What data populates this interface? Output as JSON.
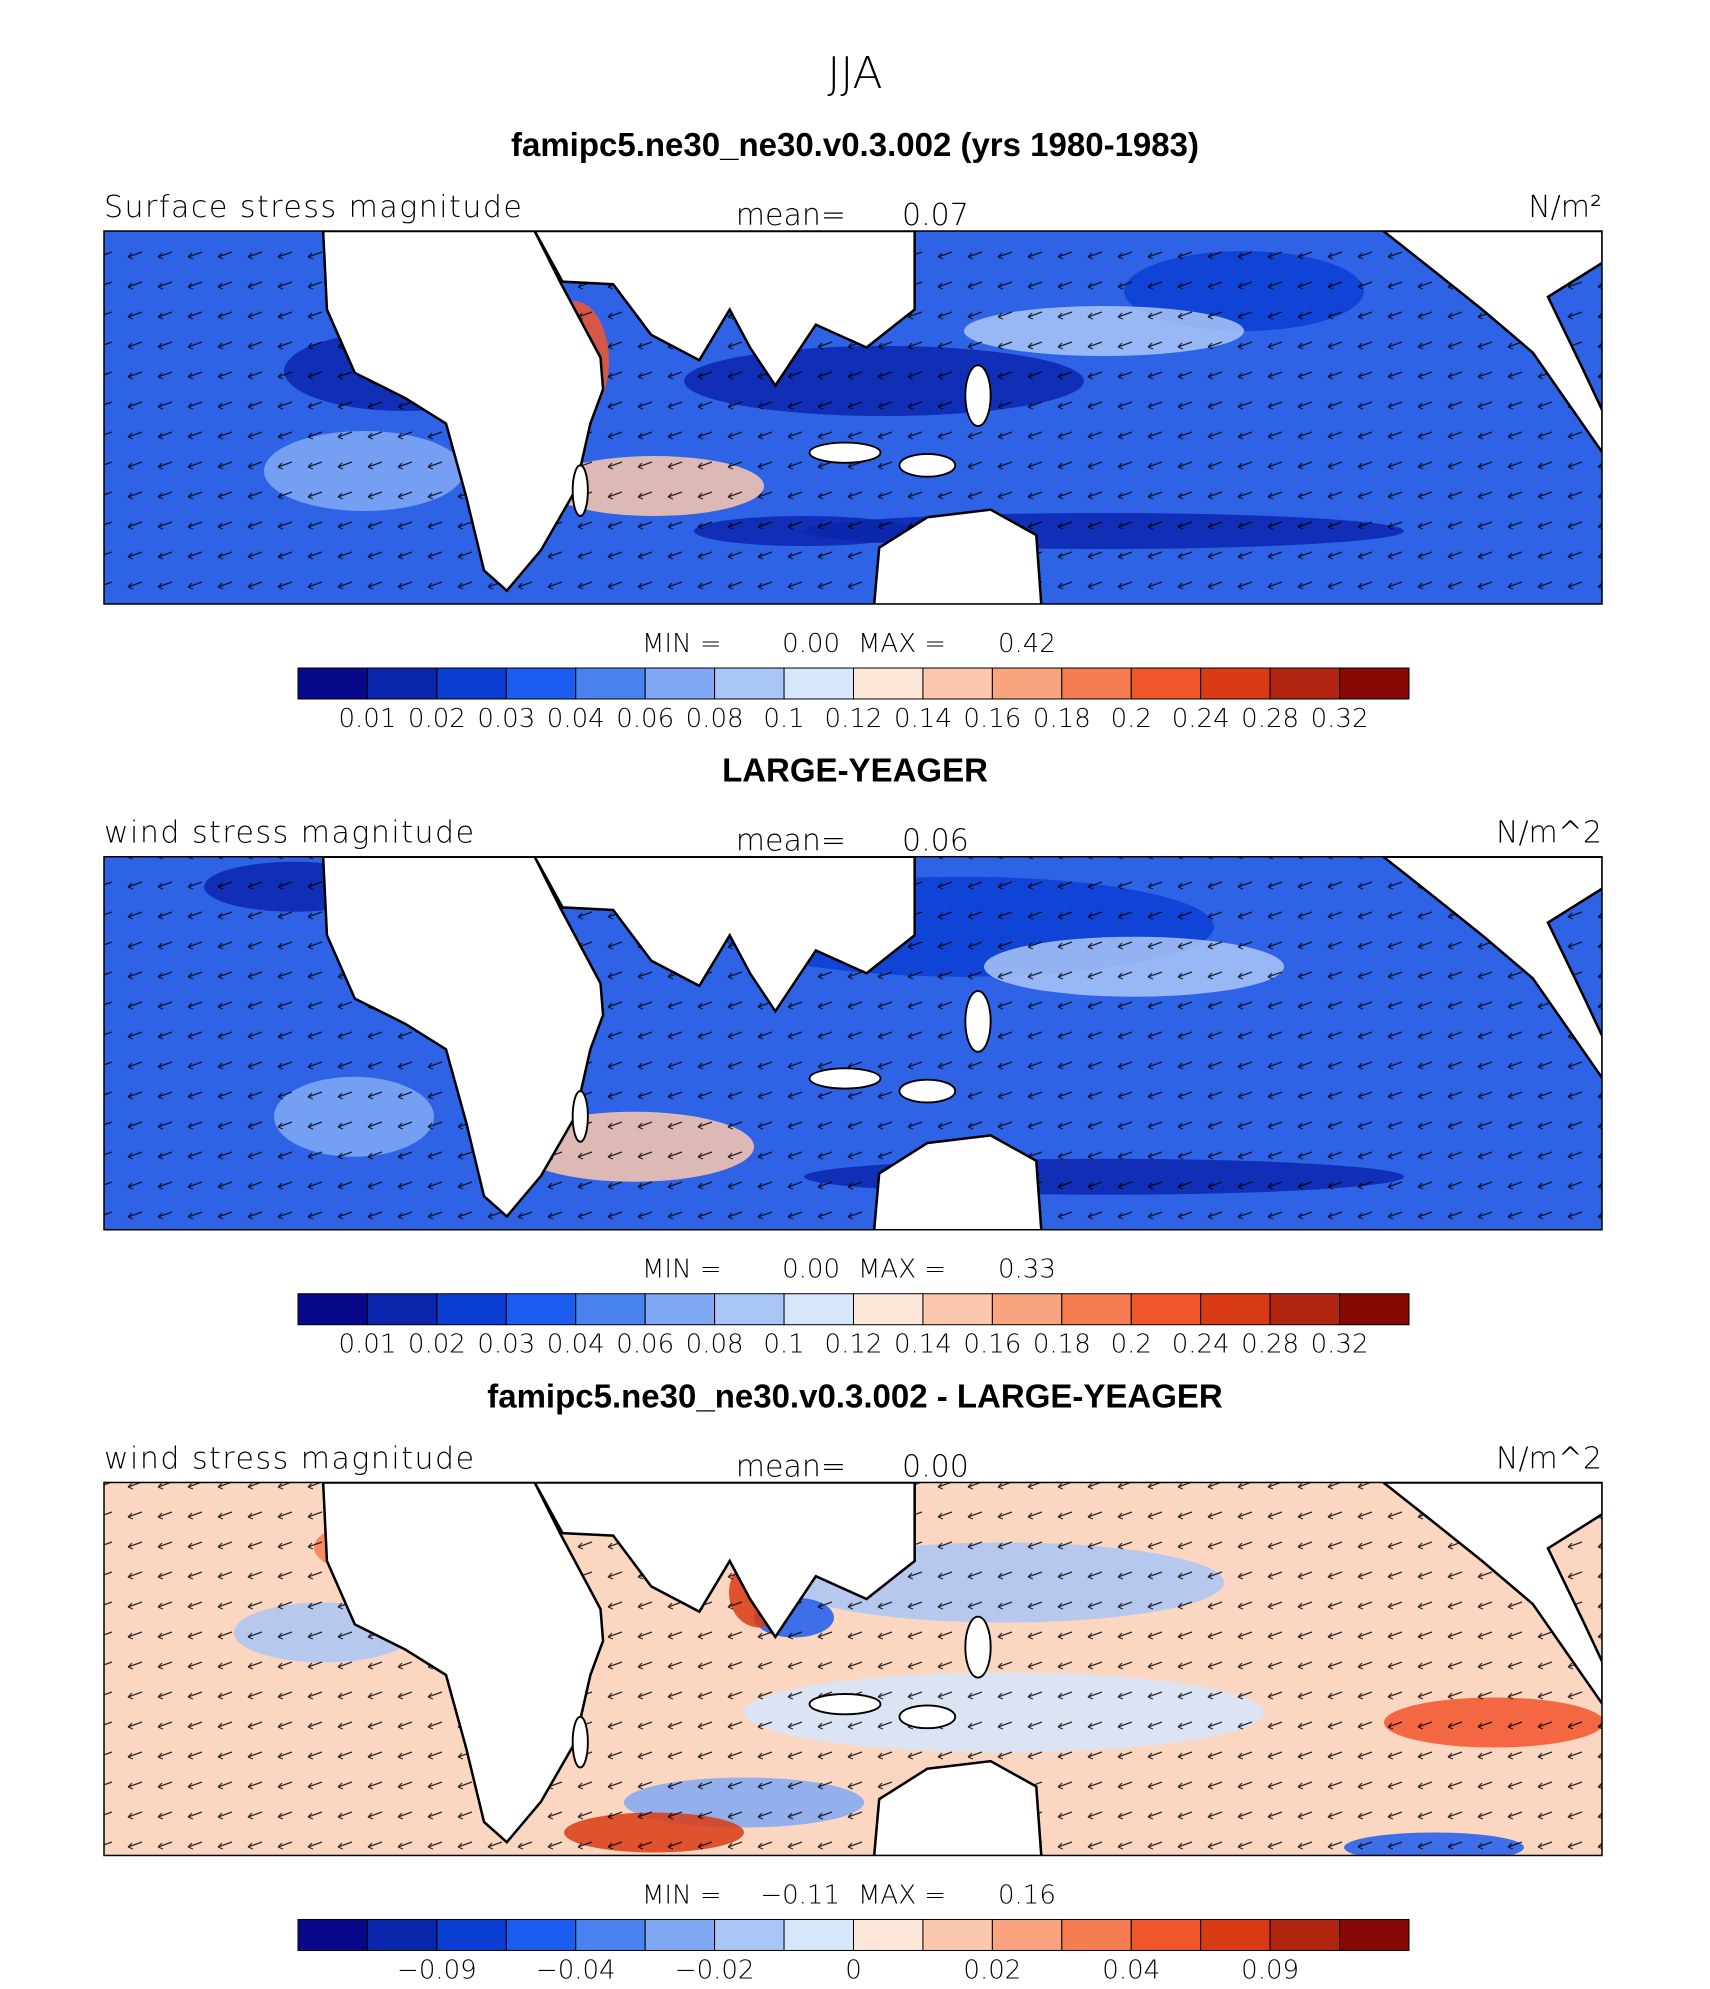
{
  "title": "JJA",
  "colorbar_colors": [
    "#07088a",
    "#0a26ad",
    "#0a3ed3",
    "#1d5cf0",
    "#4a82ef",
    "#80a9f4",
    "#aac6f7",
    "#d6e6fb",
    "#fde7d8",
    "#fbc8ad",
    "#f9a47e",
    "#f67d52",
    "#f1552c",
    "#d93b14",
    "#b22611",
    "#870905"
  ],
  "panels": [
    {
      "title": "famipc5.ne30_ne30.v0.3.002 (yrs 1980-1983)",
      "left_label": "Surface stress magnitude",
      "mean_label": "mean=",
      "mean": "0.07",
      "units": "N/m²",
      "min_label": "MIN =",
      "min": "0.00",
      "max_label": "MAX =",
      "max": "0.42",
      "colorbar_labels": [
        "0.01",
        "0.02",
        "0.03",
        "0.04",
        "0.06",
        "0.08",
        "0.1",
        "0.12",
        "0.14",
        "0.16",
        "0.18",
        "0.2",
        "0.24",
        "0.28",
        "0.32"
      ]
    },
    {
      "title": "LARGE-YEAGER",
      "left_label": "wind stress magnitude",
      "mean_label": "mean=",
      "mean": "0.06",
      "units": "N/m^2",
      "min_label": "MIN =",
      "min": "0.00",
      "max_label": "MAX =",
      "max": "0.33",
      "colorbar_labels": [
        "0.01",
        "0.02",
        "0.03",
        "0.04",
        "0.06",
        "0.08",
        "0.1",
        "0.12",
        "0.14",
        "0.16",
        "0.18",
        "0.2",
        "0.24",
        "0.28",
        "0.32"
      ]
    },
    {
      "title": "famipc5.ne30_ne30.v0.3.002 - LARGE-YEAGER",
      "left_label": "wind stress magnitude",
      "mean_label": "mean=",
      "mean": "0.00",
      "units": "N/m^2",
      "min_label": "MIN =",
      "min": "−0.11",
      "max_label": "MAX =",
      "max": "0.16",
      "colorbar_labels": [
        null,
        "−0.09",
        null,
        "−0.04",
        null,
        "−0.02",
        null,
        "0",
        null,
        "0.02",
        null,
        "0.04",
        null,
        "0.09",
        null
      ]
    }
  ]
}
